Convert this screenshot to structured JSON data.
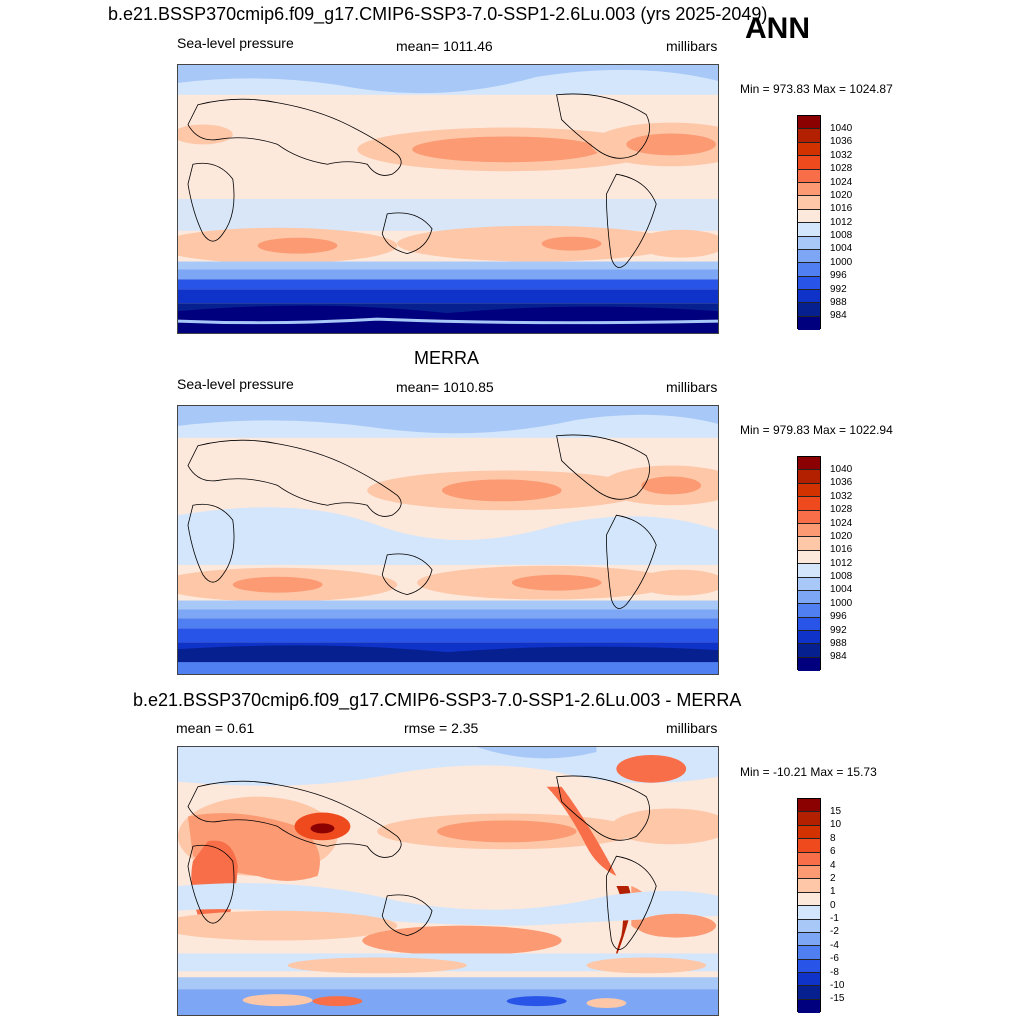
{
  "season": "ANN",
  "panels": [
    {
      "title": "b.e21.BSSP370cmip6.f09_g17.CMIP6-SSP3-7.0-SSP1-2.6Lu.003 (yrs 2025-2049)",
      "left": "Sea-level pressure",
      "center": "mean= 1011.46",
      "right": "millibars",
      "minmax": "Min = 973.83 Max = 1024.87",
      "colorbar_labels": [
        "1040",
        "1036",
        "1032",
        "1028",
        "1024",
        "1020",
        "1016",
        "1012",
        "1008",
        "1004",
        "1000",
        "996",
        "992",
        "988",
        "984"
      ]
    },
    {
      "title": "MERRA",
      "left": "Sea-level pressure",
      "center": "mean= 1010.85",
      "right": "millibars",
      "minmax": "Min = 979.83 Max = 1022.94",
      "colorbar_labels": [
        "1040",
        "1036",
        "1032",
        "1028",
        "1024",
        "1020",
        "1016",
        "1012",
        "1008",
        "1004",
        "1000",
        "996",
        "992",
        "988",
        "984"
      ]
    },
    {
      "title": "b.e21.BSSP370cmip6.f09_g17.CMIP6-SSP3-7.0-SSP1-2.6Lu.003 - MERRA",
      "left": "mean =   0.61",
      "center": "rmse =   2.35",
      "right": "millibars",
      "minmax": "Min = -10.21 Max =  15.73",
      "colorbar_labels": [
        "15",
        "10",
        "8",
        "6",
        "4",
        "2",
        "1",
        "0",
        "-1",
        "-2",
        "-4",
        "-6",
        "-8",
        "-10",
        "-15"
      ]
    }
  ],
  "colors": {
    "abs_scale": [
      "#8b0000",
      "#b22000",
      "#d23100",
      "#ee4a1e",
      "#f76e48",
      "#fb9a73",
      "#fdc7a8",
      "#fde8dc",
      "#d4e6fb",
      "#a8c8f8",
      "#7da7f5",
      "#4f7ff0",
      "#2855e8",
      "#0f33c8",
      "#06208f",
      "#00007e"
    ],
    "diff_scale": [
      "#8b0000",
      "#b22000",
      "#d23100",
      "#ee4a1e",
      "#f76e48",
      "#fb9a73",
      "#fdc7a8",
      "#fde8dc",
      "#d4e6fb",
      "#a8c8f8",
      "#7da7f5",
      "#4f7ff0",
      "#2855e8",
      "#0f33c8",
      "#06208f",
      "#00007e"
    ]
  }
}
